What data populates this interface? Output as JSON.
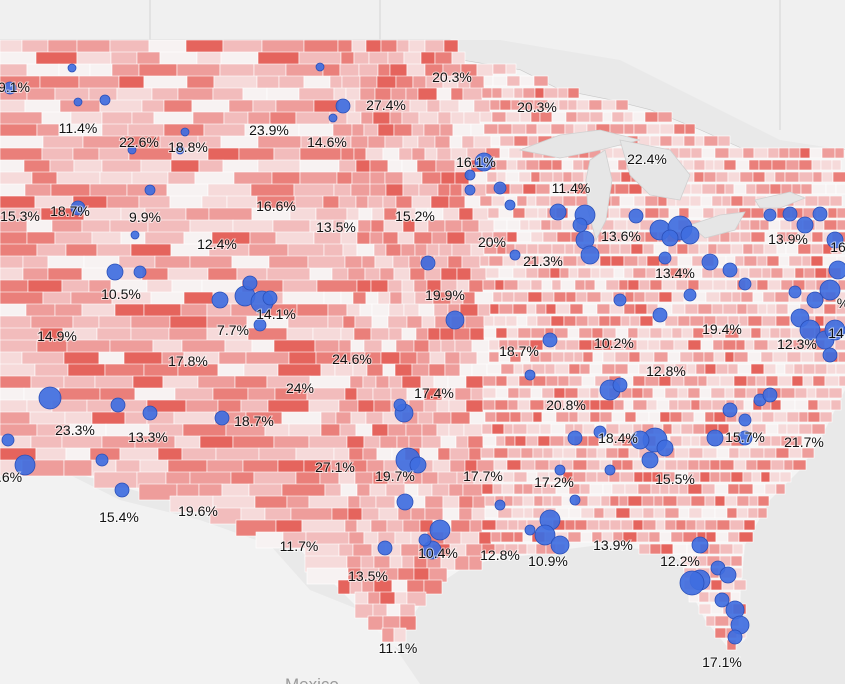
{
  "map": {
    "country_label": "Mexico",
    "colors": {
      "land": "#f4f4f4",
      "water": "#e6e6e6",
      "county_scale": [
        "#f7f2f2",
        "#f6dada",
        "#f2bcbc",
        "#ee9d9b",
        "#ea7f7a",
        "#e5645d"
      ],
      "county_border": "#ffffff",
      "city_bubble": "#3f6ee0",
      "city_bubble_stroke": "#2a4fb8",
      "label_text": "#111111"
    },
    "region_labels": [
      "9.1%",
      "20.3%",
      "27.4%",
      "20.3%",
      "11.4%",
      "22.6%",
      "18.8%",
      "23.9%",
      "14.6%",
      "16.1%",
      "22.4%",
      "11.4%",
      "15.3%",
      "18.7%",
      "9.9%",
      "16.6%",
      "13.5%",
      "15.2%",
      "12.4%",
      "20%",
      "21.3%",
      "13.6%",
      "13.9%",
      "16",
      "10.5%",
      "13.4%",
      "19.9%",
      "14.1%",
      "14.9%",
      "7.7%",
      "19.4%",
      "12.3%",
      "14",
      "10.2%",
      "18.7%",
      "17.8%",
      "24.6%",
      "12.8%",
      "24%",
      "17.4%",
      "23.3%",
      "13.3%",
      "18.7%",
      "20.8%",
      "18.4%",
      "15.7%",
      "21.7%",
      "27.1%",
      "19.7%",
      "17.7%",
      "17.2%",
      "15.5%",
      ".6%",
      "15.4%",
      "19.6%",
      "11.7%",
      "10.4%",
      "12.8%",
      "10.9%",
      "13.9%",
      "12.2%",
      "13.5%",
      "11.1%",
      "17.1%",
      "%"
    ]
  }
}
